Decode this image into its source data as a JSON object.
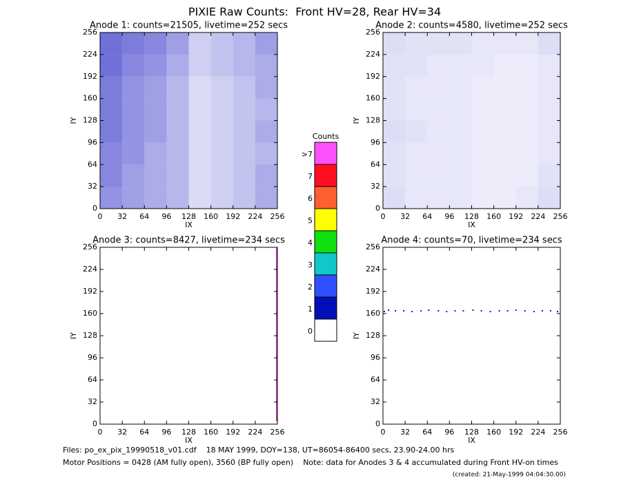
{
  "title": "PIXIE Raw Counts:  Front HV=28, Rear HV=34",
  "chart_data": [
    {
      "type": "heatmap",
      "title": "Anode 1: counts=21505, livetime=252 secs",
      "xlabel": "IX",
      "ylabel": "IY",
      "xlim": [
        0,
        256
      ],
      "ylim": [
        0,
        256
      ],
      "xticks": [
        0,
        32,
        64,
        96,
        128,
        160,
        192,
        224,
        256
      ],
      "yticks": [
        0,
        32,
        64,
        96,
        128,
        160,
        192,
        224,
        256
      ],
      "color": "#1010c0",
      "cells": [
        [
          0.45,
          0.4,
          0.35,
          0.3,
          0.15,
          0.2,
          0.25,
          0.35
        ],
        [
          0.5,
          0.4,
          0.35,
          0.3,
          0.15,
          0.2,
          0.25,
          0.35
        ],
        [
          0.5,
          0.45,
          0.35,
          0.3,
          0.15,
          0.2,
          0.25,
          0.3
        ],
        [
          0.55,
          0.45,
          0.4,
          0.3,
          0.15,
          0.2,
          0.25,
          0.35
        ],
        [
          0.55,
          0.45,
          0.4,
          0.3,
          0.15,
          0.2,
          0.25,
          0.3
        ],
        [
          0.55,
          0.45,
          0.4,
          0.3,
          0.15,
          0.2,
          0.25,
          0.35
        ],
        [
          0.6,
          0.5,
          0.45,
          0.35,
          0.2,
          0.25,
          0.3,
          0.35
        ],
        [
          0.6,
          0.55,
          0.5,
          0.4,
          0.2,
          0.25,
          0.3,
          0.4
        ]
      ]
    },
    {
      "type": "heatmap",
      "title": "Anode 2: counts=4580, livetime=252 secs",
      "xlabel": "IX",
      "ylabel": "IY",
      "xlim": [
        0,
        256
      ],
      "ylim": [
        0,
        256
      ],
      "xticks": [
        0,
        32,
        64,
        96,
        128,
        160,
        192,
        224,
        256
      ],
      "yticks": [
        0,
        32,
        64,
        96,
        128,
        160,
        192,
        224,
        256
      ],
      "color": "#1010c0",
      "cells": [
        [
          0.14,
          0.1,
          0.1,
          0.1,
          0.08,
          0.08,
          0.1,
          0.14
        ],
        [
          0.12,
          0.1,
          0.1,
          0.1,
          0.08,
          0.08,
          0.08,
          0.12
        ],
        [
          0.12,
          0.1,
          0.1,
          0.1,
          0.08,
          0.08,
          0.08,
          0.1
        ],
        [
          0.14,
          0.12,
          0.1,
          0.1,
          0.08,
          0.08,
          0.08,
          0.1
        ],
        [
          0.12,
          0.1,
          0.1,
          0.1,
          0.08,
          0.08,
          0.08,
          0.1
        ],
        [
          0.12,
          0.1,
          0.1,
          0.1,
          0.08,
          0.08,
          0.08,
          0.1
        ],
        [
          0.12,
          0.12,
          0.1,
          0.1,
          0.1,
          0.08,
          0.08,
          0.1
        ],
        [
          0.14,
          0.12,
          0.12,
          0.12,
          0.1,
          0.1,
          0.1,
          0.14
        ]
      ]
    },
    {
      "type": "line",
      "title": "Anode 3: counts=8427, livetime=234 secs",
      "xlabel": "IX",
      "ylabel": "IY",
      "xlim": [
        0,
        256
      ],
      "ylim": [
        0,
        256
      ],
      "xticks": [
        0,
        32,
        64,
        96,
        128,
        160,
        192,
        224,
        256
      ],
      "yticks": [
        0,
        32,
        64,
        96,
        128,
        160,
        192,
        224,
        256
      ],
      "color": "#c040c0",
      "x": [
        255,
        255
      ],
      "y": [
        4,
        256
      ]
    },
    {
      "type": "scatter",
      "title": "Anode 4: counts=70, livetime=234 secs",
      "xlabel": "IX",
      "ylabel": "IY",
      "xlim": [
        0,
        256
      ],
      "ylim": [
        0,
        256
      ],
      "xticks": [
        0,
        32,
        64,
        96,
        128,
        160,
        192,
        224,
        256
      ],
      "yticks": [
        0,
        32,
        64,
        96,
        128,
        160,
        192,
        224,
        256
      ],
      "color": "#1010c0",
      "x": [
        2,
        8,
        18,
        30,
        42,
        55,
        66,
        80,
        92,
        104,
        116,
        130,
        142,
        155,
        168,
        180,
        192,
        205,
        218,
        230,
        242,
        252
      ],
      "y": [
        163,
        165,
        164,
        164,
        163,
        164,
        165,
        164,
        163,
        164,
        164,
        165,
        164,
        163,
        164,
        164,
        165,
        164,
        163,
        164,
        164,
        163
      ]
    }
  ],
  "colorbar": {
    "title": "Counts",
    "levels": [
      {
        "label": ">7",
        "color": "#ff50ff"
      },
      {
        "label": "7",
        "color": "#ff1020"
      },
      {
        "label": "6",
        "color": "#ff6030"
      },
      {
        "label": "5",
        "color": "#ffff00"
      },
      {
        "label": "4",
        "color": "#10e010"
      },
      {
        "label": "3",
        "color": "#10c8c8"
      },
      {
        "label": "2",
        "color": "#3050ff"
      },
      {
        "label": "1",
        "color": "#0010b8"
      },
      {
        "label": "0",
        "color": "#ffffff"
      }
    ]
  },
  "footer": [
    "Files: po_ex_pix_19990518_v01.cdf    18 MAY 1999, DOY=138, UT=86054-86400 secs, 23.90-24.00 hrs",
    "Motor Positions = 0428 (AM fully open), 3560 (BP fully open)    Note: data for Anodes 3 & 4 accumulated during Front HV-on times",
    "(created: 21-May-1999 04:04:30.00)"
  ]
}
